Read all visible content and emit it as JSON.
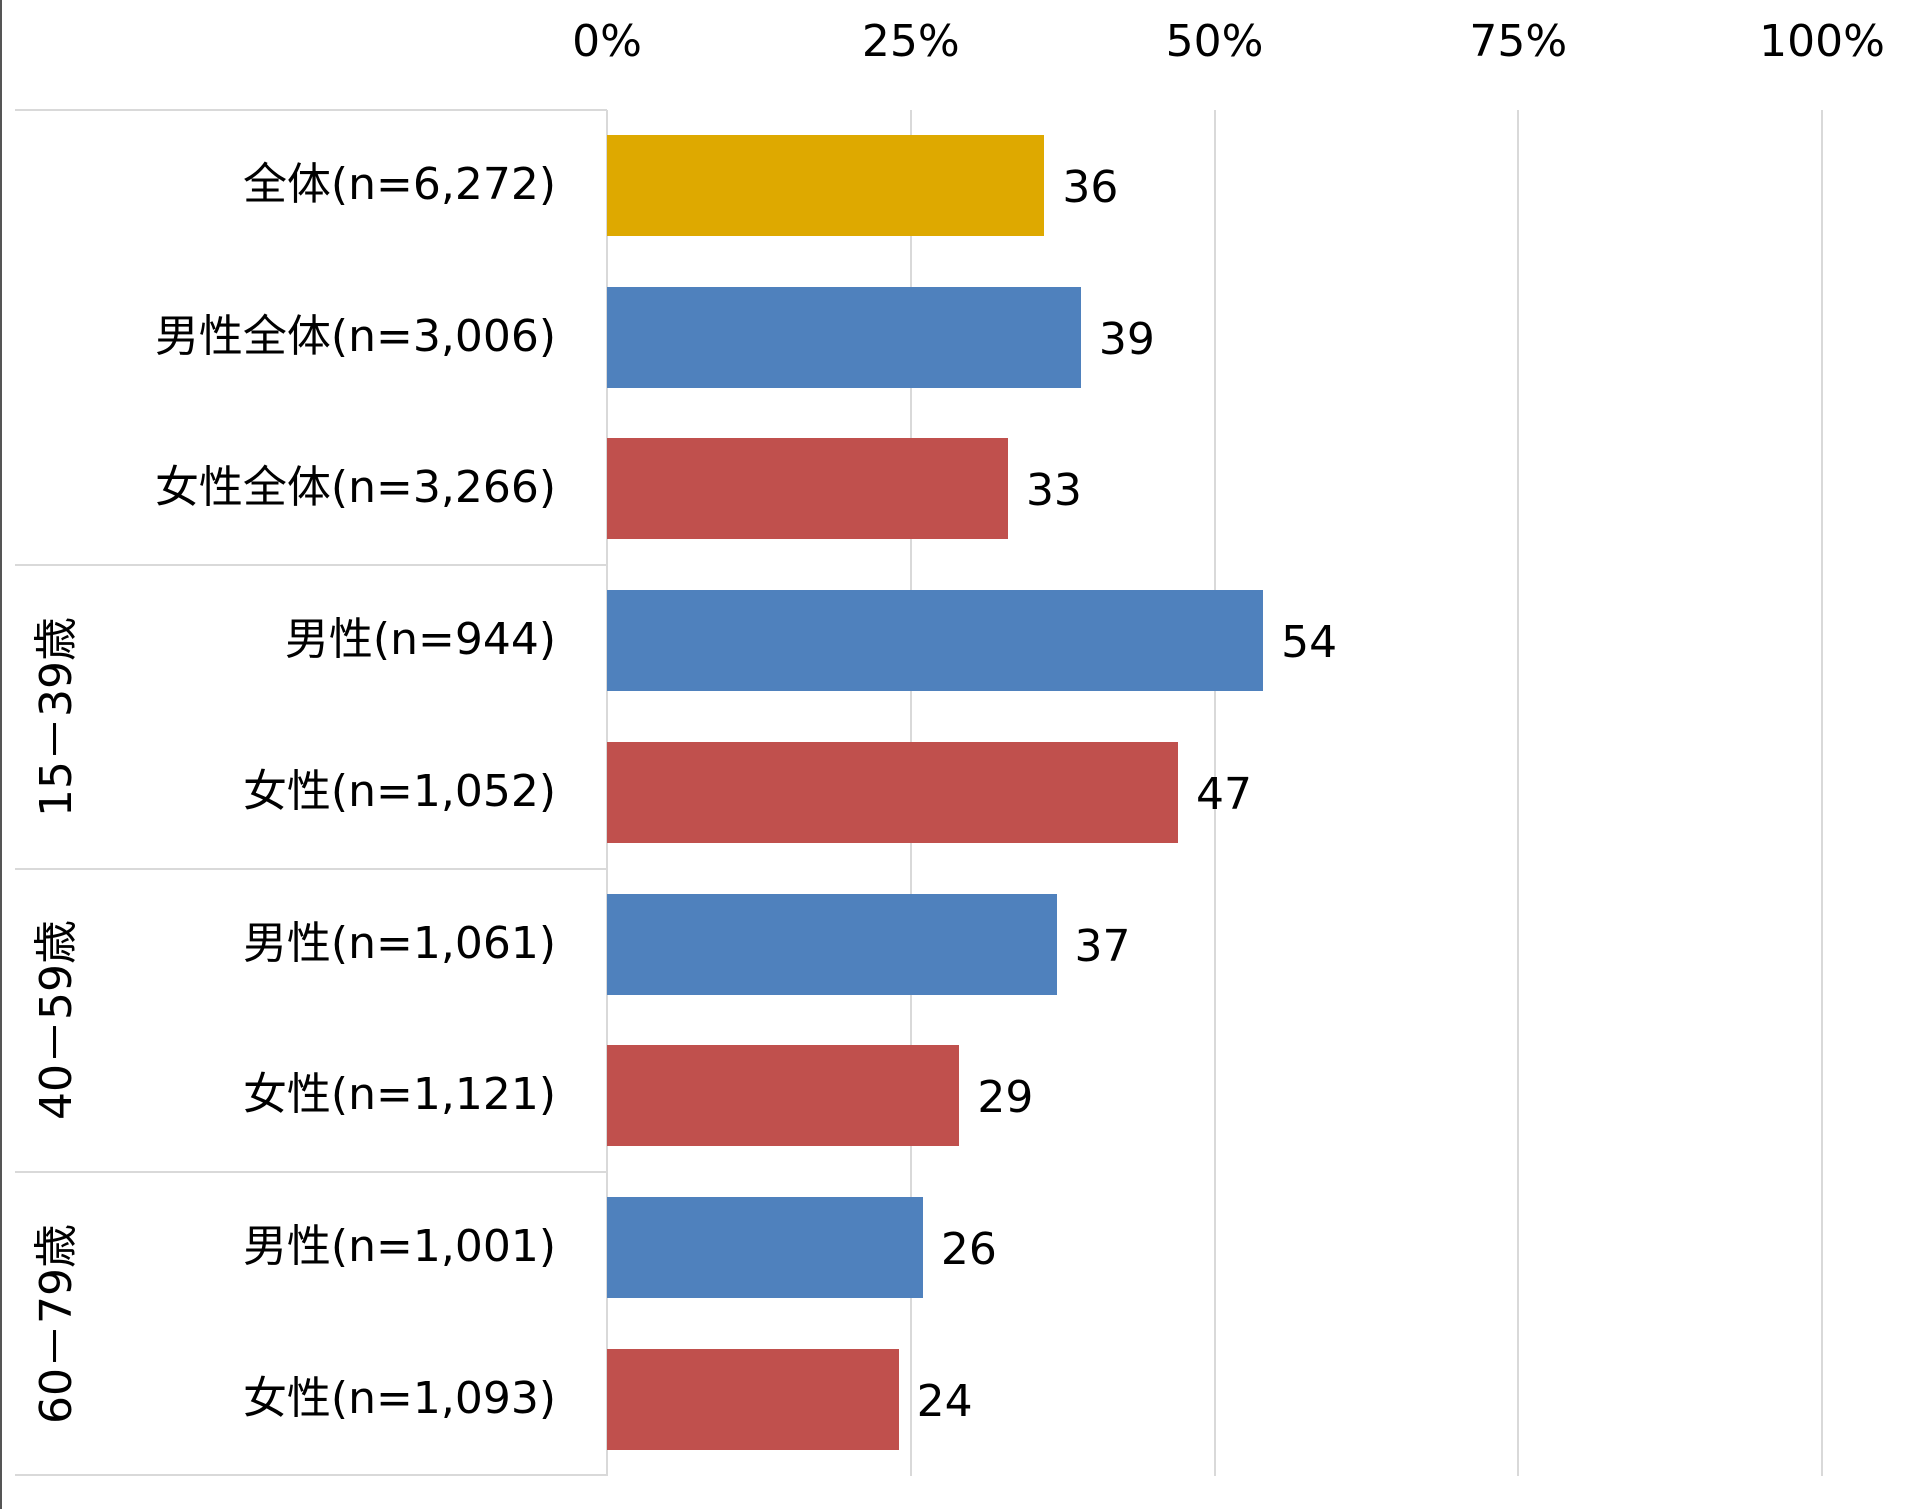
{
  "chart_data": {
    "type": "bar",
    "orientation": "horizontal",
    "title": "",
    "xlabel": "",
    "ylabel": "",
    "xlim": [
      0,
      100
    ],
    "x_ticks": [
      "0%",
      "25%",
      "50%",
      "75%",
      "100%"
    ],
    "grid": true,
    "legend": null,
    "groups": [
      {
        "label": "",
        "rows": [
          0,
          1,
          2
        ]
      },
      {
        "label": "15－39歳",
        "rows": [
          3,
          4
        ]
      },
      {
        "label": "40－59歳",
        "rows": [
          5,
          6
        ]
      },
      {
        "label": "60－79歳",
        "rows": [
          7,
          8
        ]
      }
    ],
    "categories": [
      "全体(n=6,272)",
      "男性全体(n=3,006)",
      "女性全体(n=3,266)",
      "男性(n=944)",
      "女性(n=1,052)",
      "男性(n=1,061)",
      "女性(n=1,121)",
      "男性(n=1,001)",
      "女性(n=1,093)"
    ],
    "values": [
      36,
      39,
      33,
      54,
      47,
      37,
      29,
      26,
      24
    ],
    "bar_colors": [
      "#DEA900",
      "#4F81BD",
      "#C0504D",
      "#4F81BD",
      "#C0504D",
      "#4F81BD",
      "#C0504D",
      "#4F81BD",
      "#C0504D"
    ],
    "value_labels": [
      "36",
      "39",
      "33",
      "54",
      "47",
      "37",
      "29",
      "26",
      "24"
    ]
  },
  "colors": {
    "total": "#DEA900",
    "male": "#4F81BD",
    "female": "#C0504D",
    "grid": "#D9D9D9"
  }
}
